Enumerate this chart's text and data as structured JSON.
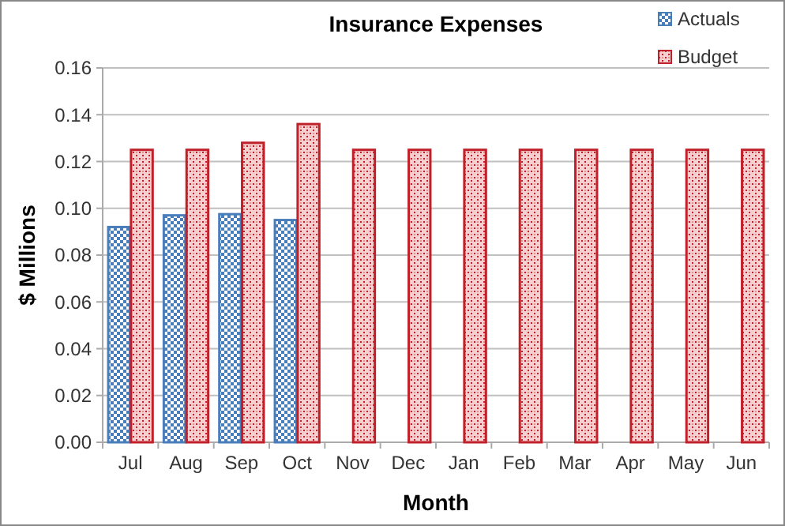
{
  "chart_data": {
    "type": "bar",
    "title": "Insurance Expenses",
    "xlabel": "Month",
    "ylabel": "$ Millions",
    "categories": [
      "Jul",
      "Aug",
      "Sep",
      "Oct",
      "Nov",
      "Dec",
      "Jan",
      "Feb",
      "Mar",
      "Apr",
      "May",
      "Jun"
    ],
    "series": [
      {
        "name": "Actuals",
        "color": "#4a7ebb",
        "values": [
          0.092,
          0.097,
          0.0975,
          0.095,
          null,
          null,
          null,
          null,
          null,
          null,
          null,
          null
        ]
      },
      {
        "name": "Budget",
        "color": "#c0202a",
        "values": [
          0.125,
          0.125,
          0.128,
          0.136,
          0.125,
          0.125,
          0.125,
          0.125,
          0.125,
          0.125,
          0.125,
          0.125
        ]
      }
    ],
    "ylim": [
      0,
      0.16
    ],
    "yticks": [
      {
        "value": 0,
        "label": "0.00"
      },
      {
        "value": 0.02,
        "label": "0.02"
      },
      {
        "value": 0.04,
        "label": "0.04"
      },
      {
        "value": 0.06,
        "label": "0.06"
      },
      {
        "value": 0.08,
        "label": "0.08"
      },
      {
        "value": 0.1,
        "label": "0.10"
      },
      {
        "value": 0.12,
        "label": "0.12"
      },
      {
        "value": 0.14,
        "label": "0.14"
      },
      {
        "value": 0.16,
        "label": "0.16"
      }
    ],
    "grid": "y",
    "legend": "top right"
  }
}
